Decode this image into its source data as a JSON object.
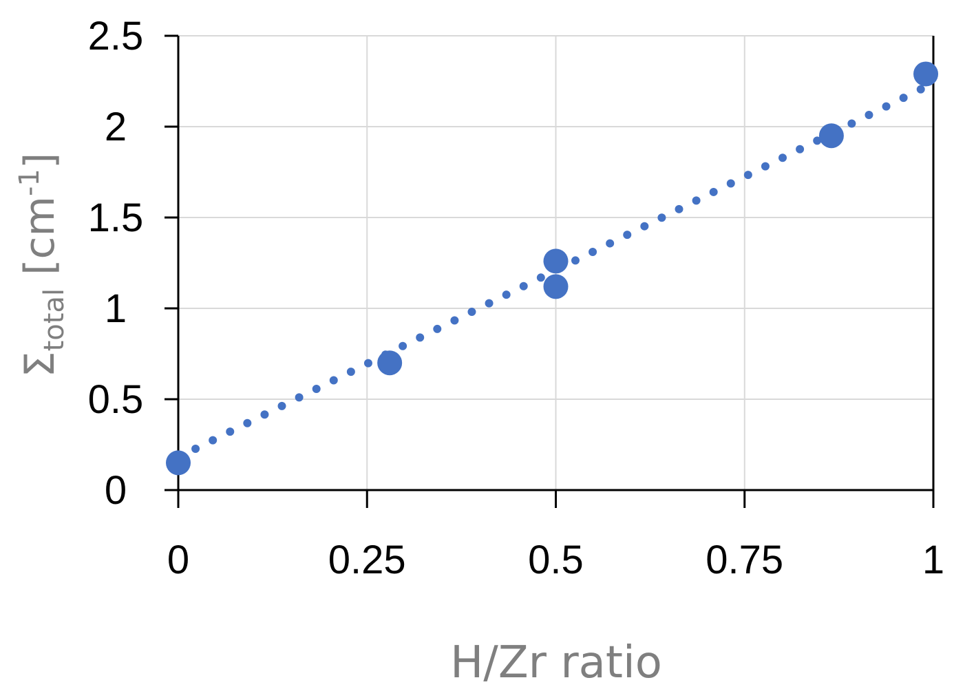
{
  "chart_data": {
    "type": "scatter",
    "title": "",
    "xlabel": "H/Zr ratio",
    "ylabel": {
      "main": "Σ",
      "subscript": "total",
      "unit_prefix": " [cm",
      "unit_superscript": "-1",
      "unit_suffix": "]"
    },
    "xlim": [
      0,
      1
    ],
    "ylim": [
      0,
      2.5
    ],
    "x_ticks": [
      {
        "value": 0,
        "label": "0"
      },
      {
        "value": 0.25,
        "label": "0.25"
      },
      {
        "value": 0.5,
        "label": "0.5"
      },
      {
        "value": 0.75,
        "label": "0.75"
      },
      {
        "value": 1,
        "label": "1"
      }
    ],
    "y_ticks": [
      {
        "value": 0,
        "label": "0"
      },
      {
        "value": 0.5,
        "label": "0.5"
      },
      {
        "value": 1,
        "label": "1"
      },
      {
        "value": 1.5,
        "label": "1.5"
      },
      {
        "value": 2,
        "label": "2"
      },
      {
        "value": 2.5,
        "label": "2.5"
      }
    ],
    "grid": true,
    "legend": "none",
    "series": [
      {
        "style": "markers",
        "color": "#4472c4",
        "points": [
          {
            "x": 0,
            "y": 0.15
          },
          {
            "x": 0.28,
            "y": 0.7
          },
          {
            "x": 0.5,
            "y": 1.12
          },
          {
            "x": 0.5,
            "y": 1.26
          },
          {
            "x": 0.865,
            "y": 1.95
          },
          {
            "x": 0.99,
            "y": 2.29
          }
        ]
      },
      {
        "style": "dotted-trendline",
        "color": "#4472c4",
        "x": [
          0,
          1
        ],
        "y": [
          0.18,
          2.24
        ]
      }
    ],
    "colors": {
      "series": "#4472c4",
      "grid": "#d9d9d9",
      "axis": "#000000",
      "axis_title": "#7f7f7f"
    }
  }
}
